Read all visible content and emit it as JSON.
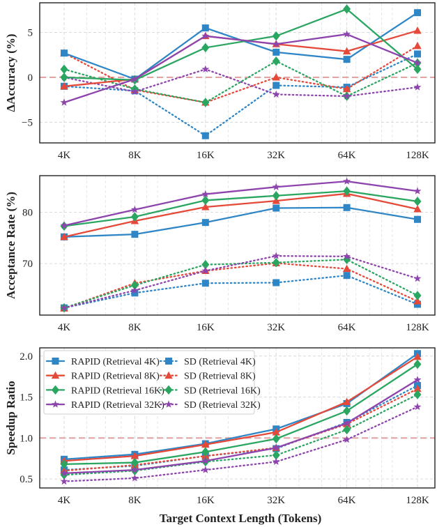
{
  "x_axis_label": "Target Context Length (Tokens)",
  "colors": {
    "RAPID (Retrieval 4K)": "#2f86c6",
    "RAPID (Retrieval 8K)": "#e5493a",
    "RAPID (Retrieval 16K)": "#2aa661",
    "RAPID (Retrieval 32K)": "#8e44ad",
    "reference_line": "#e5a3a3"
  },
  "chart_data": [
    {
      "type": "line",
      "ylabel": "ΔAccuracy (%)",
      "xlabel": "",
      "x_scale": "log2",
      "categories": [
        "4K",
        "8K",
        "16K",
        "32K",
        "64K",
        "128K"
      ],
      "ylim": [
        -7.3,
        8.3
      ],
      "yticks": [
        -5,
        0,
        5
      ],
      "reference_line": 0,
      "grid": true,
      "series": [
        {
          "name": "RAPID (Retrieval 4K)",
          "style": "solid",
          "marker": "square",
          "values": [
            2.7,
            -0.2,
            5.5,
            2.8,
            2.0,
            7.2
          ]
        },
        {
          "name": "RAPID (Retrieval 8K)",
          "style": "solid",
          "marker": "triangle",
          "values": [
            -1.0,
            -0.2,
            4.6,
            3.7,
            2.9,
            5.2
          ]
        },
        {
          "name": "RAPID (Retrieval 16K)",
          "style": "solid",
          "marker": "diamond",
          "values": [
            0.0,
            -0.3,
            3.3,
            4.6,
            7.6,
            0.9
          ]
        },
        {
          "name": "RAPID (Retrieval 32K)",
          "style": "solid",
          "marker": "star",
          "values": [
            -2.8,
            -0.2,
            4.6,
            3.7,
            4.8,
            1.6
          ]
        },
        {
          "name": "SD (Retrieval 4K)",
          "style": "dotted",
          "marker": "square",
          "values": [
            -1.0,
            -1.5,
            -6.5,
            -0.9,
            -1.1,
            2.6
          ]
        },
        {
          "name": "SD (Retrieval 8K)",
          "style": "dotted",
          "marker": "triangle",
          "values": [
            2.7,
            -1.4,
            -2.8,
            0.0,
            -1.3,
            3.5
          ]
        },
        {
          "name": "SD (Retrieval 16K)",
          "style": "dotted",
          "marker": "diamond",
          "values": [
            0.9,
            -1.3,
            -2.8,
            1.8,
            -2.1,
            1.6
          ]
        },
        {
          "name": "SD (Retrieval 32K)",
          "style": "dotted",
          "marker": "star",
          "values": [
            0.0,
            -1.6,
            0.9,
            -1.9,
            -2.1,
            -1.1
          ]
        }
      ]
    },
    {
      "type": "line",
      "ylabel": "Acceptance Rate (%)",
      "xlabel": "",
      "x_scale": "log2",
      "categories": [
        "4K",
        "8K",
        "16K",
        "32K",
        "64K",
        "128K"
      ],
      "ylim": [
        60.0,
        87.1
      ],
      "yticks": [
        70,
        80
      ],
      "grid": true,
      "series": [
        {
          "name": "RAPID (Retrieval 4K)",
          "style": "solid",
          "marker": "square",
          "values": [
            75.2,
            75.7,
            78.0,
            80.8,
            80.9,
            78.6
          ]
        },
        {
          "name": "RAPID (Retrieval 8K)",
          "style": "solid",
          "marker": "triangle",
          "values": [
            75.2,
            78.3,
            81.0,
            82.2,
            83.6,
            80.6
          ]
        },
        {
          "name": "RAPID (Retrieval 16K)",
          "style": "solid",
          "marker": "diamond",
          "values": [
            77.3,
            79.1,
            82.3,
            83.2,
            84.1,
            82.1
          ]
        },
        {
          "name": "RAPID (Retrieval 32K)",
          "style": "solid",
          "marker": "star",
          "values": [
            77.4,
            80.5,
            83.5,
            84.9,
            86.0,
            84.1
          ]
        },
        {
          "name": "SD (Retrieval 4K)",
          "style": "dotted",
          "marker": "square",
          "values": [
            61.4,
            64.3,
            66.2,
            66.3,
            67.7,
            62.1
          ]
        },
        {
          "name": "SD (Retrieval 8K)",
          "style": "dotted",
          "marker": "triangle",
          "values": [
            61.3,
            66.2,
            68.6,
            70.1,
            69.0,
            62.7
          ]
        },
        {
          "name": "SD (Retrieval 16K)",
          "style": "dotted",
          "marker": "diamond",
          "values": [
            61.4,
            65.8,
            69.8,
            70.2,
            70.8,
            63.8
          ]
        },
        {
          "name": "SD (Retrieval 32K)",
          "style": "dotted",
          "marker": "star",
          "values": [
            61.4,
            64.8,
            68.6,
            71.5,
            71.4,
            67.1
          ]
        }
      ]
    },
    {
      "type": "line",
      "ylabel": "Speedup Ratio",
      "xlabel": "Target Context Length (Tokens)",
      "x_scale": "log2",
      "categories": [
        "4K",
        "8K",
        "16K",
        "32K",
        "64K",
        "128K"
      ],
      "ylim": [
        0.39,
        2.1
      ],
      "yticks": [
        0.5,
        1.0,
        1.5,
        2.0
      ],
      "ytick_labels": [
        "0.5",
        "1.0",
        "1.5",
        "2.0"
      ],
      "reference_line": 1.0,
      "grid": true,
      "legend": "top-left",
      "series": [
        {
          "name": "RAPID (Retrieval 4K)",
          "style": "solid",
          "marker": "square",
          "values": [
            0.74,
            0.8,
            0.93,
            1.11,
            1.42,
            2.03
          ]
        },
        {
          "name": "RAPID (Retrieval 8K)",
          "style": "solid",
          "marker": "triangle",
          "values": [
            0.72,
            0.78,
            0.92,
            1.07,
            1.44,
            1.99
          ]
        },
        {
          "name": "RAPID (Retrieval 16K)",
          "style": "solid",
          "marker": "diamond",
          "values": [
            0.68,
            0.7,
            0.83,
            0.99,
            1.33,
            1.9
          ]
        },
        {
          "name": "RAPID (Retrieval 32K)",
          "style": "solid",
          "marker": "star",
          "values": [
            0.57,
            0.61,
            0.72,
            0.88,
            1.18,
            1.71
          ]
        },
        {
          "name": "SD (Retrieval 4K)",
          "style": "dotted",
          "marker": "square",
          "values": [
            0.61,
            0.66,
            0.78,
            0.87,
            1.19,
            1.64
          ]
        },
        {
          "name": "SD (Retrieval 8K)",
          "style": "dotted",
          "marker": "triangle",
          "values": [
            0.6,
            0.67,
            0.78,
            0.88,
            1.17,
            1.6
          ]
        },
        {
          "name": "SD (Retrieval 16K)",
          "style": "dotted",
          "marker": "diamond",
          "values": [
            0.55,
            0.6,
            0.71,
            0.79,
            1.1,
            1.53
          ]
        },
        {
          "name": "SD (Retrieval 32K)",
          "style": "dotted",
          "marker": "star",
          "values": [
            0.47,
            0.51,
            0.61,
            0.71,
            0.98,
            1.38
          ]
        }
      ]
    }
  ]
}
